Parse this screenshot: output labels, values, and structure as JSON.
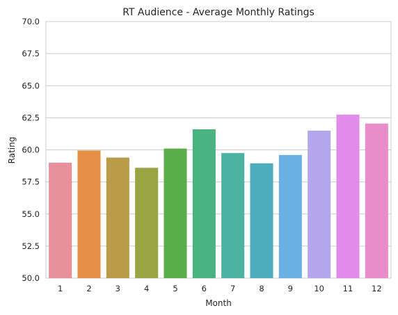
{
  "chart_data": {
    "type": "bar",
    "title": "RT Audience - Average Monthly Ratings",
    "xlabel": "Month",
    "ylabel": "Rating",
    "categories": [
      "1",
      "2",
      "3",
      "4",
      "5",
      "6",
      "7",
      "8",
      "9",
      "10",
      "11",
      "12"
    ],
    "values": [
      59.0,
      59.95,
      59.4,
      58.6,
      60.1,
      61.6,
      59.75,
      58.95,
      59.6,
      61.5,
      62.75,
      62.05
    ],
    "ylim": [
      50,
      70
    ],
    "yticks": [
      "50.0",
      "52.5",
      "55.0",
      "57.5",
      "60.0",
      "62.5",
      "65.0",
      "67.5",
      "70.0"
    ],
    "grid": "horizontal",
    "legend": "none",
    "colors": [
      "#e8909c",
      "#e59046",
      "#ba9b48",
      "#9aa443",
      "#5aae49",
      "#4bb382",
      "#4cb3a3",
      "#4eacbf",
      "#6ab0e3",
      "#b3a6ea",
      "#e18bea",
      "#e88dc9"
    ]
  }
}
